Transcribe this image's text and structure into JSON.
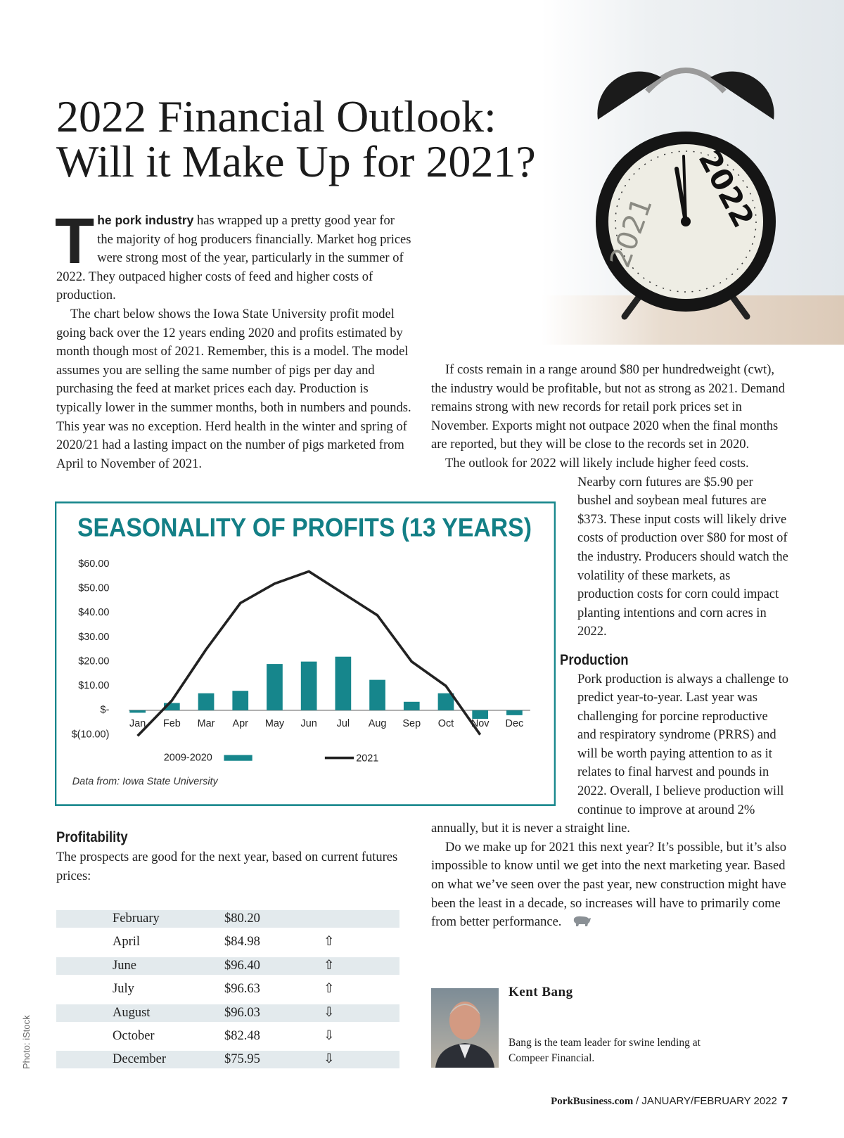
{
  "header": {
    "title_lines": [
      "2022 Financial Outlook:",
      "Will it Make Up for 2021?"
    ]
  },
  "illustration": {
    "clock_left": "2021",
    "clock_right": "2022"
  },
  "photo_credit": "Photo: iStock",
  "article": {
    "drop_cap": "T",
    "lead_bold": "he pork industry",
    "left_paragraphs": [
      " has wrapped up a pretty good year for the majority of hog producers financially. Market hog prices were strong most of the year, particularly in the summer of 2022. They outpaced higher costs of feed and higher costs of production.",
      "The chart below shows the Iowa State University profit model going back over the 12 years ending 2020 and profits estimated by month though most of 2021. Remember, this is a model. The model assumes you are selling the same number of pigs per day and purchasing the feed at market prices each day. Production is typically lower in the summer months, both in numbers and pounds. This year was no exception. Herd health in the winter and spring of 2020/21 had a lasting impact on the number of pigs marketed from April to November of 2021."
    ],
    "right_paragraphs": [
      "If costs remain in a range around $80 per hundredweight (cwt), the industry would be profitable, but not as strong as 2021. Demand remains strong with new records for retail pork prices set in November. Exports might not outpace 2020 when the final months are reported, but they will be close to the records set in 2020.",
      "The outlook for 2022 will likely include higher feed costs. Nearby corn futures are $5.90 per bushel and soybean meal futures are $373. These input costs will likely drive costs of production over $80 for most of the industry. Producers should watch the volatility of these markets, as production costs for corn could impact planting intentions and corn acres in 2022."
    ],
    "production_heading": "Production",
    "production_paragraphs": [
      "Pork production is always a challenge to predict year-to-year. Last year was challenging for porcine reproductive and respiratory syndrome (PRRS) and will be worth paying attention to as it relates to final harvest and pounds in 2022. Overall, I believe production will continue to improve at around 2% annually, but it is never a straight line.",
      "Do we make up for 2021 this next year? It’s possible, but it’s also impossible to know until we get into the next marketing year. Based on what we’ve seen over the past year, new construction might have been the least in a decade, so increases will have to primarily come from better performance."
    ],
    "profitability_heading": "Profitability",
    "profitability_text": "The prospects are good for the next year, based on current futures prices:"
  },
  "table": {
    "rows": [
      [
        "February",
        "$80.20"
      ],
      [
        "April",
        "$84.98",
        "⇧"
      ],
      [
        "June",
        "$96.40",
        "⇧"
      ],
      [
        "July",
        "$96.63",
        "⇧"
      ],
      [
        "August",
        "$96.03",
        "⇩"
      ],
      [
        "October",
        "$82.48",
        "⇩"
      ],
      [
        "December",
        "$75.95",
        "⇩"
      ]
    ]
  },
  "author": {
    "name": "Kent Bang",
    "bio": "Bang is the team leader for swine lending at Compeer Financial."
  },
  "footer": {
    "site": "PorkBusiness.com",
    "issue": "/ JANUARY/FEBRUARY 2022",
    "page": "7"
  },
  "chart_data": {
    "type": "bar",
    "title": "SEASONALITY OF PROFITS (13 YEARS)",
    "categories": [
      "Jan",
      "Feb",
      "Mar",
      "Apr",
      "May",
      "Jun",
      "Jul",
      "Aug",
      "Sep",
      "Oct",
      "Nov",
      "Dec"
    ],
    "series": [
      {
        "name": "2009-2020",
        "type": "bar",
        "color": "#16868c",
        "values": [
          -1,
          3,
          7,
          8,
          19,
          20,
          22,
          12.5,
          3.5,
          7,
          -3.5,
          -2
        ]
      },
      {
        "name": "2021",
        "type": "line",
        "color": "#222222",
        "values": [
          -10.5,
          4,
          25,
          44,
          52,
          57,
          48,
          39,
          20,
          10,
          -10,
          null
        ]
      }
    ],
    "ylim": [
      -10,
      60
    ],
    "yticks": [
      {
        "value": -10,
        "label": "$(10.00)"
      },
      {
        "value": 0,
        "label": "$-"
      },
      {
        "value": 10,
        "label": "$10.00"
      },
      {
        "value": 20,
        "label": "$20.00"
      },
      {
        "value": 30,
        "label": "$30.00"
      },
      {
        "value": 40,
        "label": "$40.00"
      },
      {
        "value": 50,
        "label": "$50.00"
      },
      {
        "value": 60,
        "label": "$60.00"
      }
    ],
    "grid": false,
    "legend": "bottom",
    "source": "Data from: Iowa State University"
  }
}
